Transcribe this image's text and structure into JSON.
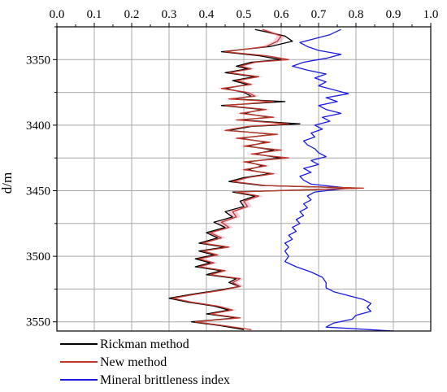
{
  "chart_data": {
    "type": "line",
    "x_axis_position": "top",
    "xlim": [
      0.0,
      1.0
    ],
    "xticks": [
      0.0,
      0.1,
      0.2,
      0.3,
      0.4,
      0.5,
      0.6,
      0.7,
      0.8,
      0.9,
      1.0
    ],
    "xtick_labels": [
      "0.0",
      "0.1",
      "0.2",
      "0.3",
      "0.4",
      "0.5",
      "0.6",
      "0.7",
      "0.8",
      "0.9",
      "1.0"
    ],
    "ylabel": "d/m",
    "ylim": [
      3325,
      3557
    ],
    "y_inverted": true,
    "yticks": [
      3350,
      3400,
      3450,
      3500,
      3550
    ],
    "ytick_labels": [
      "3350",
      "3400",
      "3450",
      "3500",
      "3550"
    ],
    "grid": true,
    "legend_position": "bottom",
    "colors": {
      "rickman": "#000000",
      "new": "#c0392b",
      "mineral": "#1a1adf"
    },
    "series": [
      {
        "name": "Rickman method",
        "key": "rickman",
        "points": [
          [
            0.53,
            3327
          ],
          [
            0.61,
            3332
          ],
          [
            0.63,
            3336
          ],
          [
            0.57,
            3340
          ],
          [
            0.44,
            3344
          ],
          [
            0.54,
            3347
          ],
          [
            0.6,
            3350
          ],
          [
            0.52,
            3352
          ],
          [
            0.48,
            3355
          ],
          [
            0.51,
            3357
          ],
          [
            0.45,
            3360
          ],
          [
            0.53,
            3363
          ],
          [
            0.47,
            3366
          ],
          [
            0.51,
            3369
          ],
          [
            0.45,
            3372
          ],
          [
            0.5,
            3375
          ],
          [
            0.52,
            3378
          ],
          [
            0.47,
            3380
          ],
          [
            0.61,
            3382
          ],
          [
            0.44,
            3385
          ],
          [
            0.55,
            3388
          ],
          [
            0.5,
            3391
          ],
          [
            0.57,
            3394
          ],
          [
            0.49,
            3396
          ],
          [
            0.65,
            3399
          ],
          [
            0.52,
            3401
          ],
          [
            0.46,
            3404
          ],
          [
            0.58,
            3407
          ],
          [
            0.49,
            3410
          ],
          [
            0.56,
            3413
          ],
          [
            0.51,
            3416
          ],
          [
            0.58,
            3419
          ],
          [
            0.53,
            3422
          ],
          [
            0.6,
            3425
          ],
          [
            0.51,
            3428
          ],
          [
            0.55,
            3431
          ],
          [
            0.51,
            3434
          ],
          [
            0.57,
            3437
          ],
          [
            0.5,
            3440
          ],
          [
            0.46,
            3443
          ],
          [
            0.55,
            3446
          ],
          [
            0.81,
            3448
          ],
          [
            0.47,
            3451
          ],
          [
            0.53,
            3454
          ],
          [
            0.49,
            3458
          ],
          [
            0.5,
            3462
          ],
          [
            0.45,
            3466
          ],
          [
            0.47,
            3470
          ],
          [
            0.42,
            3474
          ],
          [
            0.45,
            3478
          ],
          [
            0.4,
            3482
          ],
          [
            0.43,
            3486
          ],
          [
            0.38,
            3490
          ],
          [
            0.45,
            3493
          ],
          [
            0.38,
            3496
          ],
          [
            0.42,
            3499
          ],
          [
            0.37,
            3502
          ],
          [
            0.41,
            3505
          ],
          [
            0.37,
            3508
          ],
          [
            0.44,
            3511
          ],
          [
            0.4,
            3514
          ],
          [
            0.48,
            3517
          ],
          [
            0.46,
            3520
          ],
          [
            0.49,
            3523
          ],
          [
            0.43,
            3526
          ],
          [
            0.36,
            3529
          ],
          [
            0.3,
            3532
          ],
          [
            0.35,
            3535
          ],
          [
            0.42,
            3538
          ],
          [
            0.46,
            3541
          ],
          [
            0.4,
            3544
          ],
          [
            0.48,
            3547
          ],
          [
            0.36,
            3550
          ],
          [
            0.44,
            3553
          ],
          [
            0.5,
            3556
          ]
        ]
      },
      {
        "name": "New method",
        "key": "new",
        "points": [
          [
            0.55,
            3327
          ],
          [
            0.6,
            3332
          ],
          [
            0.59,
            3336
          ],
          [
            0.56,
            3340
          ],
          [
            0.45,
            3344
          ],
          [
            0.56,
            3347
          ],
          [
            0.62,
            3350
          ],
          [
            0.53,
            3352
          ],
          [
            0.49,
            3355
          ],
          [
            0.52,
            3357
          ],
          [
            0.46,
            3360
          ],
          [
            0.54,
            3363
          ],
          [
            0.48,
            3366
          ],
          [
            0.52,
            3369
          ],
          [
            0.44,
            3372
          ],
          [
            0.51,
            3375
          ],
          [
            0.53,
            3378
          ],
          [
            0.46,
            3380
          ],
          [
            0.58,
            3382
          ],
          [
            0.45,
            3385
          ],
          [
            0.56,
            3388
          ],
          [
            0.49,
            3391
          ],
          [
            0.58,
            3394
          ],
          [
            0.48,
            3396
          ],
          [
            0.62,
            3399
          ],
          [
            0.51,
            3401
          ],
          [
            0.45,
            3404
          ],
          [
            0.59,
            3407
          ],
          [
            0.48,
            3410
          ],
          [
            0.57,
            3413
          ],
          [
            0.5,
            3416
          ],
          [
            0.6,
            3419
          ],
          [
            0.52,
            3422
          ],
          [
            0.62,
            3425
          ],
          [
            0.5,
            3428
          ],
          [
            0.56,
            3431
          ],
          [
            0.5,
            3434
          ],
          [
            0.58,
            3437
          ],
          [
            0.51,
            3440
          ],
          [
            0.47,
            3443
          ],
          [
            0.56,
            3446
          ],
          [
            0.82,
            3448
          ],
          [
            0.48,
            3451
          ],
          [
            0.54,
            3454
          ],
          [
            0.5,
            3458
          ],
          [
            0.51,
            3462
          ],
          [
            0.47,
            3466
          ],
          [
            0.48,
            3470
          ],
          [
            0.44,
            3474
          ],
          [
            0.46,
            3478
          ],
          [
            0.41,
            3482
          ],
          [
            0.44,
            3486
          ],
          [
            0.39,
            3490
          ],
          [
            0.46,
            3493
          ],
          [
            0.39,
            3496
          ],
          [
            0.43,
            3499
          ],
          [
            0.38,
            3502
          ],
          [
            0.42,
            3505
          ],
          [
            0.38,
            3508
          ],
          [
            0.45,
            3511
          ],
          [
            0.41,
            3514
          ],
          [
            0.49,
            3517
          ],
          [
            0.47,
            3520
          ],
          [
            0.49,
            3523
          ],
          [
            0.44,
            3526
          ],
          [
            0.37,
            3529
          ],
          [
            0.31,
            3532
          ],
          [
            0.36,
            3535
          ],
          [
            0.43,
            3538
          ],
          [
            0.47,
            3541
          ],
          [
            0.41,
            3544
          ],
          [
            0.49,
            3547
          ],
          [
            0.37,
            3550
          ],
          [
            0.45,
            3553
          ],
          [
            0.52,
            3556
          ]
        ]
      },
      {
        "name": "Mineral brittleness index",
        "key": "mineral",
        "points": [
          [
            0.76,
            3327
          ],
          [
            0.73,
            3331
          ],
          [
            0.69,
            3334
          ],
          [
            0.65,
            3337
          ],
          [
            0.67,
            3340
          ],
          [
            0.7,
            3343
          ],
          [
            0.76,
            3346
          ],
          [
            0.72,
            3349
          ],
          [
            0.66,
            3352
          ],
          [
            0.63,
            3355
          ],
          [
            0.67,
            3358
          ],
          [
            0.72,
            3361
          ],
          [
            0.69,
            3364
          ],
          [
            0.72,
            3367
          ],
          [
            0.7,
            3370
          ],
          [
            0.74,
            3373
          ],
          [
            0.78,
            3376
          ],
          [
            0.72,
            3379
          ],
          [
            0.75,
            3382
          ],
          [
            0.7,
            3385
          ],
          [
            0.72,
            3388
          ],
          [
            0.76,
            3391
          ],
          [
            0.71,
            3394
          ],
          [
            0.73,
            3397
          ],
          [
            0.69,
            3400
          ],
          [
            0.71,
            3403
          ],
          [
            0.68,
            3406
          ],
          [
            0.69,
            3409
          ],
          [
            0.66,
            3412
          ],
          [
            0.67,
            3415
          ],
          [
            0.69,
            3418
          ],
          [
            0.7,
            3421
          ],
          [
            0.72,
            3424
          ],
          [
            0.68,
            3427
          ],
          [
            0.7,
            3430
          ],
          [
            0.66,
            3433
          ],
          [
            0.68,
            3436
          ],
          [
            0.65,
            3439
          ],
          [
            0.66,
            3442
          ],
          [
            0.68,
            3445
          ],
          [
            0.78,
            3448
          ],
          [
            0.69,
            3451
          ],
          [
            0.67,
            3454
          ],
          [
            0.68,
            3457
          ],
          [
            0.66,
            3460
          ],
          [
            0.67,
            3463
          ],
          [
            0.65,
            3466
          ],
          [
            0.66,
            3469
          ],
          [
            0.64,
            3472
          ],
          [
            0.65,
            3475
          ],
          [
            0.63,
            3478
          ],
          [
            0.64,
            3481
          ],
          [
            0.62,
            3484
          ],
          [
            0.63,
            3487
          ],
          [
            0.61,
            3490
          ],
          [
            0.62,
            3493
          ],
          [
            0.61,
            3496
          ],
          [
            0.62,
            3500
          ],
          [
            0.61,
            3504
          ],
          [
            0.64,
            3508
          ],
          [
            0.68,
            3512
          ],
          [
            0.71,
            3516
          ],
          [
            0.72,
            3520
          ],
          [
            0.72,
            3524
          ],
          [
            0.74,
            3527
          ],
          [
            0.78,
            3530
          ],
          [
            0.82,
            3533
          ],
          [
            0.84,
            3536
          ],
          [
            0.83,
            3539
          ],
          [
            0.84,
            3542
          ],
          [
            0.8,
            3545
          ],
          [
            0.79,
            3548
          ],
          [
            0.74,
            3551
          ],
          [
            0.72,
            3554
          ],
          [
            0.9,
            3557
          ]
        ]
      }
    ]
  }
}
